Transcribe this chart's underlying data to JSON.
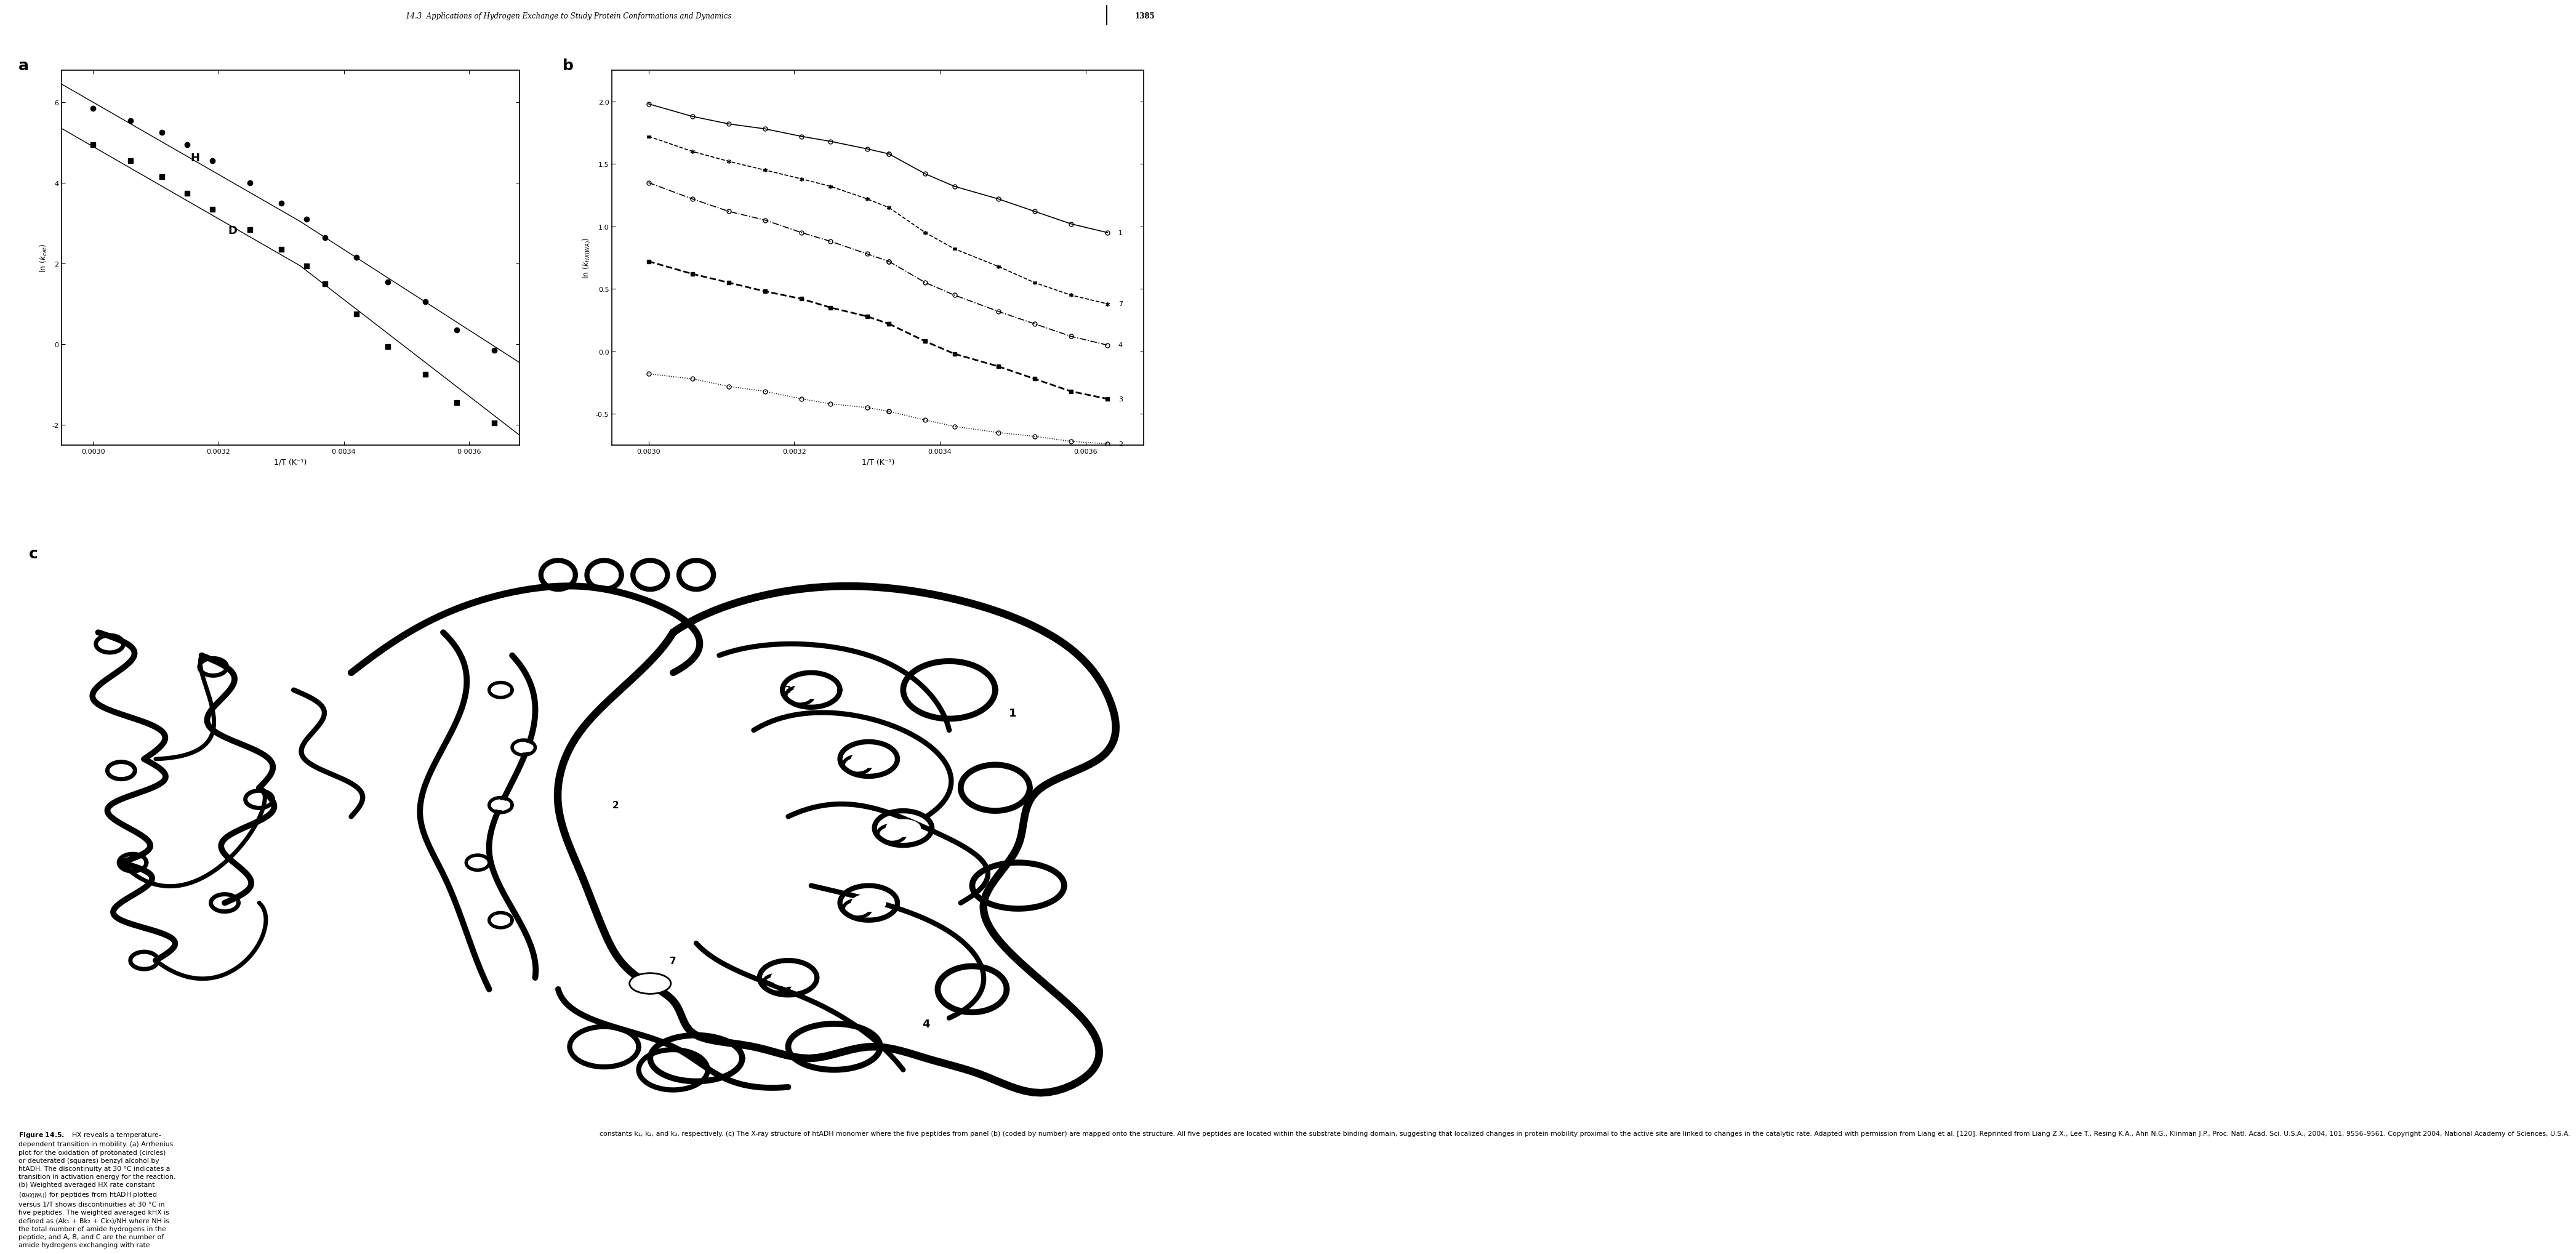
{
  "page_header": "14.3  Applications of Hydrogen Exchange to Study Protein Conformations and Dynamics",
  "page_number": "1385",
  "panel_a_label": "a",
  "panel_b_label": "b",
  "panel_c_label": "c",
  "panel_a": {
    "xlabel": "1/T (K⁻¹)",
    "ylabel": "ln (kₐₐₜ)",
    "xlim": [
      0.00295,
      0.00368
    ],
    "ylim": [
      -2.5,
      6.8
    ],
    "yticks": [
      -2,
      0,
      2,
      4,
      6
    ],
    "xticks": [
      0.003,
      0.0032,
      0.0034,
      0.0036
    ],
    "xtick_labels": [
      "0.0030",
      "0.0032",
      "0 0034",
      "0 0036"
    ],
    "H_label": "H",
    "D_label": "D",
    "H_circles_x": [
      0.003,
      0.00306,
      0.00311,
      0.00315,
      0.00319,
      0.00325,
      0.0033,
      0.00334,
      0.00337,
      0.00342,
      0.00347,
      0.00353,
      0.00358,
      0.00364
    ],
    "H_circles_y": [
      5.85,
      5.55,
      5.25,
      4.95,
      4.55,
      4.0,
      3.5,
      3.1,
      2.65,
      2.15,
      1.55,
      1.05,
      0.35,
      -0.15
    ],
    "D_squares_x": [
      0.003,
      0.00306,
      0.00311,
      0.00315,
      0.00319,
      0.00325,
      0.0033,
      0.00334,
      0.00337,
      0.00342,
      0.00347,
      0.00353,
      0.00358,
      0.00364
    ],
    "D_squares_y": [
      4.95,
      4.55,
      4.15,
      3.75,
      3.35,
      2.85,
      2.35,
      1.95,
      1.5,
      0.75,
      -0.05,
      -0.75,
      -1.45,
      -1.95
    ],
    "H_line1_x": [
      0.00295,
      0.00333
    ],
    "H_line1_y": [
      6.45,
      3.05
    ],
    "H_line2_x": [
      0.00333,
      0.00368
    ],
    "H_line2_y": [
      3.05,
      -0.45
    ],
    "D_line1_x": [
      0.00295,
      0.00333
    ],
    "D_line1_y": [
      5.35,
      1.95
    ],
    "D_line2_x": [
      0.00333,
      0.00368
    ],
    "D_line2_y": [
      1.95,
      -2.25
    ]
  },
  "panel_b": {
    "xlabel": "1/T (K⁻¹)",
    "ylabel": "ln (k_{HX(WA)})",
    "xlim": [
      0.00295,
      0.00368
    ],
    "ylim": [
      -0.75,
      2.25
    ],
    "yticks": [
      -0.5,
      0.0,
      0.5,
      1.0,
      1.5,
      2.0
    ],
    "xticks": [
      0.003,
      0.0032,
      0.0034,
      0.0036
    ],
    "xtick_labels": [
      "0.0030",
      "0.0032",
      "0.0034",
      "0.0036"
    ],
    "series": [
      {
        "label": "1",
        "marker": "o",
        "filled": false,
        "linestyle": "-",
        "x1": [
          0.003,
          0.00306,
          0.00311,
          0.00316,
          0.00321,
          0.00325,
          0.0033,
          0.00333
        ],
        "y1": [
          1.98,
          1.88,
          1.82,
          1.78,
          1.72,
          1.68,
          1.62,
          1.58
        ],
        "x2": [
          0.00333,
          0.00338,
          0.00342,
          0.00348,
          0.00353,
          0.00358,
          0.00363
        ],
        "y2": [
          1.58,
          1.42,
          1.32,
          1.22,
          1.12,
          1.02,
          0.95
        ]
      },
      {
        "label": "7",
        "marker": "*",
        "filled": false,
        "linestyle": "--",
        "x1": [
          0.003,
          0.00306,
          0.00311,
          0.00316,
          0.00321,
          0.00325,
          0.0033,
          0.00333
        ],
        "y1": [
          1.72,
          1.6,
          1.52,
          1.45,
          1.38,
          1.32,
          1.22,
          1.15
        ],
        "x2": [
          0.00333,
          0.00338,
          0.00342,
          0.00348,
          0.00353,
          0.00358,
          0.00363
        ],
        "y2": [
          1.15,
          0.95,
          0.82,
          0.68,
          0.55,
          0.45,
          0.38
        ]
      },
      {
        "label": "4",
        "marker": "o",
        "filled": false,
        "linestyle": "-.",
        "x1": [
          0.003,
          0.00306,
          0.00311,
          0.00316,
          0.00321,
          0.00325,
          0.0033,
          0.00333
        ],
        "y1": [
          1.35,
          1.22,
          1.12,
          1.05,
          0.95,
          0.88,
          0.78,
          0.72
        ],
        "x2": [
          0.00333,
          0.00338,
          0.00342,
          0.00348,
          0.00353,
          0.00358,
          0.00363
        ],
        "y2": [
          0.72,
          0.55,
          0.45,
          0.32,
          0.22,
          0.12,
          0.05
        ]
      },
      {
        "label": "3",
        "marker": "s",
        "filled": true,
        "linestyle": "--",
        "x1": [
          0.003,
          0.00306,
          0.00311,
          0.00316,
          0.00321,
          0.00325,
          0.0033,
          0.00333
        ],
        "y1": [
          0.72,
          0.62,
          0.55,
          0.48,
          0.42,
          0.35,
          0.28,
          0.22
        ],
        "x2": [
          0.00333,
          0.00338,
          0.00342,
          0.00348,
          0.00353,
          0.00358,
          0.00363
        ],
        "y2": [
          0.22,
          0.08,
          -0.02,
          -0.12,
          -0.22,
          -0.32,
          -0.38
        ]
      },
      {
        "label": "2",
        "marker": "o",
        "filled": false,
        "linestyle": ":",
        "x1": [
          0.003,
          0.00306,
          0.00311,
          0.00316,
          0.00321,
          0.00325,
          0.0033,
          0.00333
        ],
        "y1": [
          -0.18,
          -0.22,
          -0.28,
          -0.32,
          -0.38,
          -0.42,
          -0.45,
          -0.48
        ],
        "x2": [
          0.00333,
          0.00338,
          0.00342,
          0.00348,
          0.00353,
          0.00358,
          0.00363
        ],
        "y2": [
          -0.48,
          -0.55,
          -0.6,
          -0.65,
          -0.68,
          -0.72,
          -0.74
        ]
      }
    ]
  },
  "caption_left": [
    "Figure 14.5.",
    "   HX reveals a temperature-",
    "dependent transition in mobility. (a) Arrhenius",
    "plot for the oxidation of protonated (circles)",
    "or deuterated (squares) benzyl alcohol by",
    "htADH. The discontinuity at 30 °C indicates a",
    "transition in activation energy for the reaction.",
    "(b) Weighted averaged HX rate constant",
    "(k",
    ") for peptides from htADH plotted",
    "versus 1/T shows discontinuities at 30 °C in",
    "five peptides. The weighted averaged kHX is",
    "defined as (Ak",
    " + Bk",
    " + Ck",
    ")/NH where NH is",
    "the total number of amide hydrogens in the",
    "peptide, and A, B, and C are the number of",
    "amide hydrogens exchanging with rate"
  ],
  "caption_right_text": "constants k₁, k₂, and k₃, respectively. (c) The X-ray structure of htADH monomer where the five peptides from panel (b) (coded by number) are mapped onto the structure. All five peptides are located within the substrate binding domain, suggesting that localized changes in protein mobility proximal to the active site are linked to changes in the catalytic rate. Adapted with permission from Liang et al. [120]. Reprinted from Liang Z.X., Lee T., Resing K.A., Ahn N.G., Klinman J.P., Proc. Natl. Acad. Sci. U.S.A., 2004, 101, 9556–9561. Copyright 2004, National Academy of Sciences, U.S.A."
}
